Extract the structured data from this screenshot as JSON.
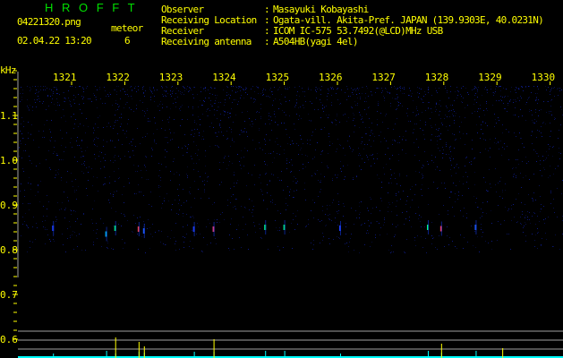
{
  "header": {
    "app_title": "H R O F F T",
    "filename": "04221320.png",
    "datetime": "02.04.22 13:20",
    "meteor_label": "meteor",
    "meteor_count": "6",
    "info": [
      {
        "label": "Observer",
        "value": "Masayuki Kobayashi"
      },
      {
        "label": "Receiving Location",
        "value": "Ogata-vill. Akita-Pref. JAPAN (139.9303E, 40.0231N)"
      },
      {
        "label": "Receiver",
        "value": "ICOM IC-575 53.7492(@LCD)MHz USB"
      },
      {
        "label": "Receiving antenna",
        "value": "A504HB(yagi 4el)"
      }
    ]
  },
  "chart_data": {
    "type": "heatmap",
    "ylabel": "kHz",
    "x_ticks": [
      "1321",
      "1322",
      "1323",
      "1324",
      "1325",
      "1326",
      "1327",
      "1328",
      "1329",
      "1330"
    ],
    "y_ticks": [
      "1.1",
      "1.0",
      "0.9",
      "0.8",
      "0.7",
      "0.6"
    ],
    "ylim": [
      0.58,
      1.2
    ],
    "xlim": [
      1320,
      1330.3
    ],
    "colors": {
      "background": "#000000",
      "noise": "#1020a0",
      "axis_text": "#ffff00",
      "title": "#00e000",
      "echo_bar": "#00ffff",
      "meteor_bar": "#ffff00",
      "grid": "#a0a0a0"
    },
    "echoes": [
      {
        "time": 1320.65,
        "freq": 0.848,
        "color": "#2040ff"
      },
      {
        "time": 1321.65,
        "freq": 0.835,
        "color": "#00c0ff"
      },
      {
        "time": 1321.82,
        "freq": 0.848,
        "color": "#00ff80"
      },
      {
        "time": 1322.26,
        "freq": 0.846,
        "color": "#ff4040"
      },
      {
        "time": 1322.36,
        "freq": 0.842,
        "color": "#2060ff"
      },
      {
        "time": 1323.3,
        "freq": 0.846,
        "color": "#2040ff"
      },
      {
        "time": 1323.67,
        "freq": 0.846,
        "color": "#ff4080"
      },
      {
        "time": 1324.64,
        "freq": 0.85,
        "color": "#00ff80"
      },
      {
        "time": 1325.0,
        "freq": 0.85,
        "color": "#00ff80"
      },
      {
        "time": 1326.05,
        "freq": 0.848,
        "color": "#2040ff"
      },
      {
        "time": 1327.7,
        "freq": 0.85,
        "color": "#00ff80"
      },
      {
        "time": 1327.95,
        "freq": 0.847,
        "color": "#ff4060"
      },
      {
        "time": 1328.6,
        "freq": 0.85,
        "color": "#2060ff"
      }
    ],
    "meteor_bars": [
      1321.82,
      1322.26,
      1322.36,
      1323.67,
      1327.95,
      1329.1
    ]
  }
}
